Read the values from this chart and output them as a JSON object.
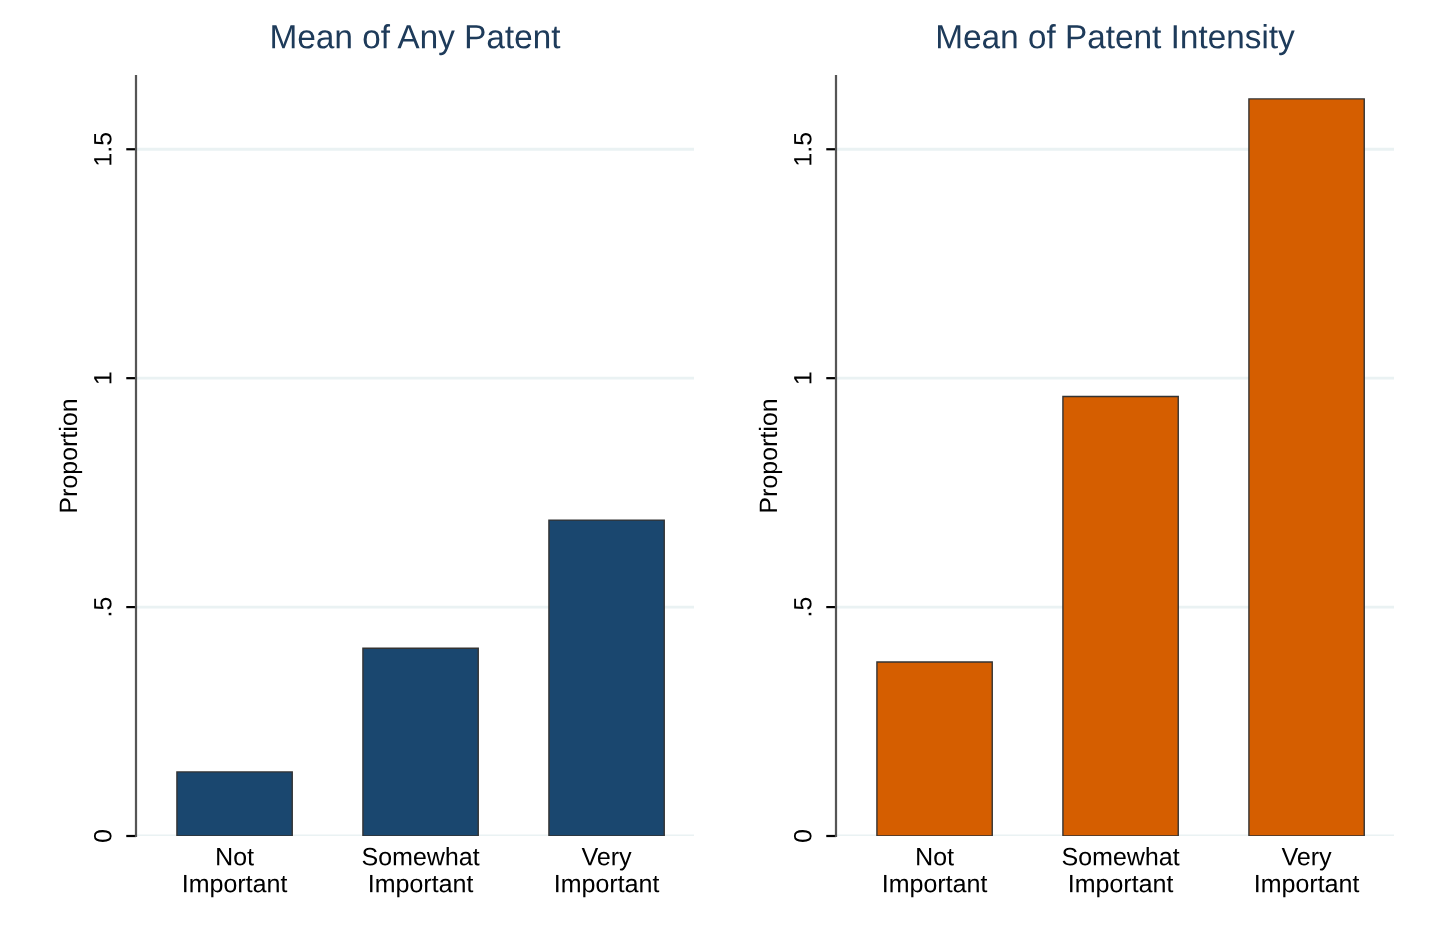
{
  "chart_data": [
    {
      "type": "bar",
      "title": "Mean of Any Patent",
      "ylabel": "Proportion",
      "categories": [
        "Not\nImportant",
        "Somewhat\nImportant",
        "Very\nImportant"
      ],
      "values": [
        0.14,
        0.41,
        0.69
      ],
      "color": "#1a476f",
      "ylim": [
        0,
        1.66
      ],
      "yticks": [
        0,
        {
          "value": 0.5,
          "label": ".5"
        },
        1,
        1.5
      ],
      "grid": "y"
    },
    {
      "type": "bar",
      "title": "Mean of Patent Intensity",
      "ylabel": "Proportion",
      "categories": [
        "Not\nImportant",
        "Somewhat\nImportant",
        "Very\nImportant"
      ],
      "values": [
        0.38,
        0.96,
        1.61
      ],
      "color": "#d55e00",
      "ylim": [
        0,
        1.66
      ],
      "yticks": [
        0,
        {
          "value": 0.5,
          "label": ".5"
        },
        1,
        1.5
      ],
      "grid": "y"
    }
  ]
}
